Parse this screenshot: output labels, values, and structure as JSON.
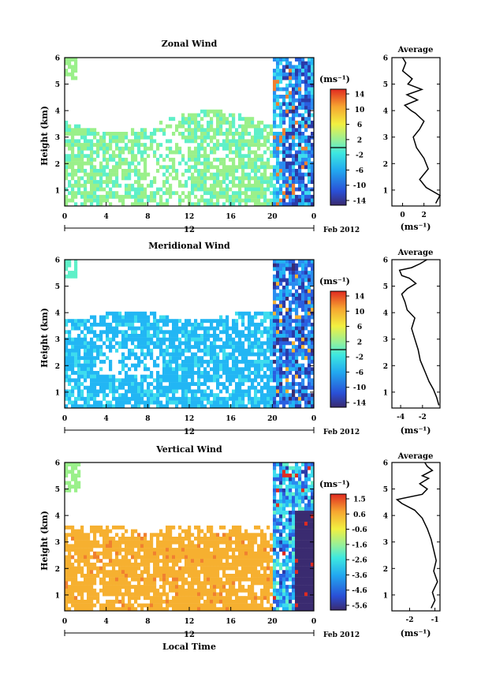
{
  "figure": {
    "xlabel": "Local Time",
    "date_label": "Feb 2012",
    "day_label": "12",
    "unit_label": "(ms⁻¹)",
    "avg_title": "Average",
    "avg_xlabel": "(ms⁻¹)",
    "ylabel": "Height (km)",
    "xticks": [
      "0",
      "4",
      "8",
      "12",
      "16",
      "20",
      "0"
    ],
    "yticks": [
      "1",
      "2",
      "3",
      "4",
      "5",
      "6"
    ]
  },
  "chart_data": [
    {
      "type": "heatmap",
      "title": "Zonal Wind",
      "ylabel": "Height (km)",
      "xlabel": "",
      "xlim": [
        0,
        24
      ],
      "ylim": [
        0.4,
        6
      ],
      "colorbar": {
        "unit": "(ms⁻¹)",
        "ticks": [
          "14",
          "10",
          "6",
          "2",
          "-2",
          "-6",
          "-10",
          "-14"
        ],
        "range": [
          -16,
          16
        ]
      },
      "average_profile": {
        "title": "Average",
        "xlabel": "(ms⁻¹)",
        "xticks": [
          "0",
          "2"
        ],
        "xlim": [
          -1,
          3.5
        ],
        "x": [
          3.1,
          3.5,
          2.2,
          1.6,
          2.4,
          2.0,
          1.3,
          1.0,
          1.6,
          2.0,
          1.2,
          0.8,
          0.2,
          1.4,
          0.4,
          1.8,
          0.5,
          0.9,
          0.0,
          0.3,
          0.0
        ],
        "y": [
          0.5,
          0.8,
          1.1,
          1.4,
          1.8,
          2.2,
          2.6,
          3.0,
          3.3,
          3.6,
          3.9,
          4.0,
          4.2,
          4.4,
          4.6,
          4.8,
          5.0,
          5.2,
          5.5,
          5.8,
          6.0
        ]
      }
    },
    {
      "type": "heatmap",
      "title": "Meridional Wind",
      "ylabel": "Height (km)",
      "xlabel": "",
      "xlim": [
        0,
        24
      ],
      "ylim": [
        0.4,
        6
      ],
      "colorbar": {
        "unit": "(ms⁻¹)",
        "ticks": [
          "14",
          "10",
          "6",
          "2",
          "-2",
          "-6",
          "-10",
          "-14"
        ],
        "range": [
          -16,
          16
        ]
      },
      "average_profile": {
        "title": "Average",
        "xlabel": "(ms⁻¹)",
        "xticks": [
          "-4",
          "-2"
        ],
        "xlim": [
          -4.8,
          -0.4
        ],
        "x": [
          -0.5,
          -0.7,
          -1.0,
          -1.4,
          -1.8,
          -2.2,
          -2.4,
          -2.7,
          -3.0,
          -2.7,
          -3.4,
          -3.6,
          -3.9,
          -3.4,
          -2.6,
          -3.2,
          -3.9,
          -4.1,
          -3.0,
          -2.2,
          -1.6
        ],
        "y": [
          0.5,
          0.8,
          1.1,
          1.4,
          1.8,
          2.2,
          2.6,
          3.0,
          3.4,
          3.8,
          4.1,
          4.4,
          4.7,
          4.9,
          5.1,
          5.3,
          5.4,
          5.6,
          5.7,
          5.85,
          6.0
        ]
      }
    },
    {
      "type": "heatmap",
      "title": "Vertical Wind",
      "ylabel": "Height (km)",
      "xlabel": "Local Time",
      "xlim": [
        0,
        24
      ],
      "ylim": [
        0.4,
        6
      ],
      "colorbar": {
        "unit": "(ms⁻¹)",
        "ticks": [
          "1.5",
          "0.6",
          "-0.6",
          "-1.6",
          "-2.6",
          "-3.6",
          "-4.6",
          "-5.6"
        ],
        "range": [
          -6,
          2
        ]
      },
      "average_profile": {
        "title": "Average",
        "xlabel": "(ms⁻¹)",
        "xticks": [
          "-2",
          "-1"
        ],
        "xlim": [
          -2.7,
          -0.8
        ],
        "x": [
          -1.15,
          -1.0,
          -1.1,
          -0.9,
          -1.05,
          -0.95,
          -1.05,
          -1.15,
          -1.3,
          -1.5,
          -1.8,
          -2.3,
          -2.5,
          -1.5,
          -1.3,
          -1.6,
          -1.25,
          -1.5,
          -1.1,
          -1.3,
          -1.4
        ],
        "y": [
          0.5,
          0.8,
          1.1,
          1.5,
          1.9,
          2.3,
          2.7,
          3.1,
          3.5,
          3.9,
          4.2,
          4.45,
          4.6,
          4.8,
          5.0,
          5.2,
          5.4,
          5.5,
          5.7,
          5.85,
          6.0
        ]
      }
    }
  ]
}
